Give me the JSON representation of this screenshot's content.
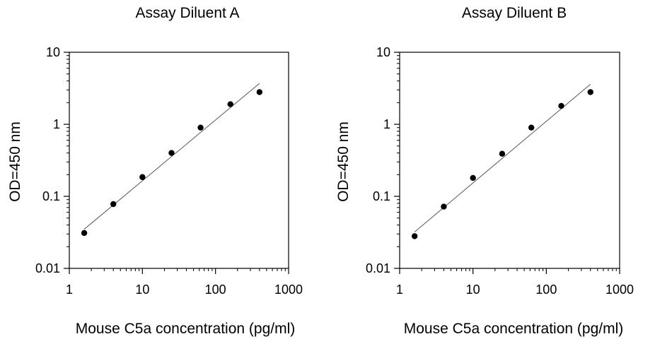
{
  "chart_data": [
    {
      "type": "scatter",
      "title": "Assay Diluent A",
      "xlabel": "Mouse C5a concentration (pg/ml)",
      "ylabel": "OD=450 nm",
      "xscale": "log",
      "yscale": "log",
      "xlim": [
        1,
        1000
      ],
      "ylim": [
        0.01,
        10
      ],
      "xticks": [
        "1",
        "10",
        "100",
        "1000"
      ],
      "yticks": [
        "0.01",
        "0.1",
        "1",
        "10"
      ],
      "grid": false,
      "series": [
        {
          "x": [
            1.6,
            4,
            10,
            25,
            62.5,
            160,
            400
          ],
          "y": [
            0.031,
            0.078,
            0.185,
            0.4,
            0.9,
            1.9,
            2.8
          ]
        }
      ],
      "fit_line": {
        "x": [
          1.6,
          400
        ],
        "y": [
          0.035,
          3.7
        ]
      }
    },
    {
      "type": "scatter",
      "title": "Assay Diluent B",
      "xlabel": "Mouse C5a concentration (pg/ml)",
      "ylabel": "OD=450 nm",
      "xscale": "log",
      "yscale": "log",
      "xlim": [
        1,
        1000
      ],
      "ylim": [
        0.01,
        10
      ],
      "xticks": [
        "1",
        "10",
        "100",
        "1000"
      ],
      "yticks": [
        "0.01",
        "0.1",
        "1",
        "10"
      ],
      "grid": false,
      "series": [
        {
          "x": [
            1.6,
            4,
            10,
            25,
            62.5,
            160,
            400
          ],
          "y": [
            0.028,
            0.072,
            0.18,
            0.39,
            0.9,
            1.8,
            2.8
          ]
        }
      ],
      "fit_line": {
        "x": [
          1.6,
          400
        ],
        "y": [
          0.032,
          3.6
        ]
      }
    }
  ]
}
